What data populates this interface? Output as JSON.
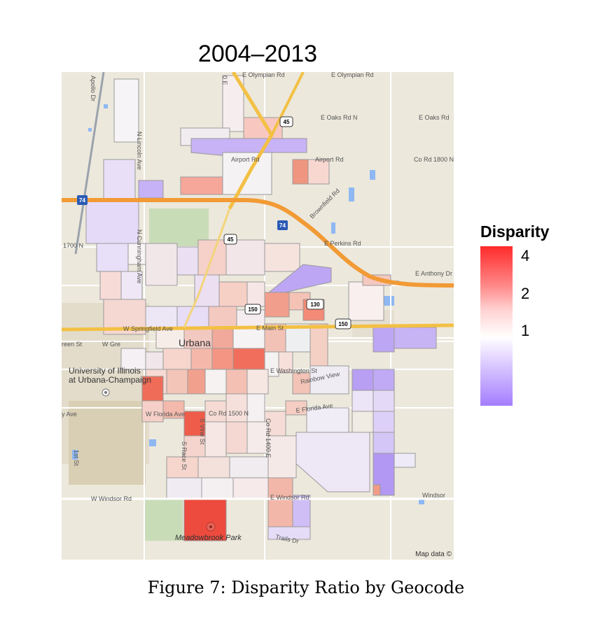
{
  "title": "2004–2013",
  "caption": "Figure 7: Disparity Ratio by Geocode",
  "map": {
    "attribution": "Map data ©",
    "city_label": "Urbana",
    "university_label_line1": "University of Illinois",
    "university_label_line2": "at Urbana-Champaign",
    "park_label": "Meadowbrook Park",
    "road_labels": {
      "e_olympian_rd_1": "E Olympian Rd",
      "e_olympian_rd_2": "E Olympian Rd",
      "e_oaks_rd_n": "E Oaks Rd N",
      "e_oaks_rd": "E Oaks Rd",
      "co_rd_1800": "Co Rd 1800 N",
      "airport_rd_1": "Airport Rd",
      "airport_rd_2": "Airport Rd",
      "brownfield_rd": "Brownfield Rd",
      "e_perkins_rd": "E Perkins Rd",
      "e_anthony_dr": "E Anthony Dr",
      "rd_1700n": "1700 N",
      "apollo_dr": "Apollo Dr",
      "n_lincoln_ave": "N Lincoln Ave",
      "n_cunningham": "N Cunningham Ave",
      "springfield_ave": "W Springfield Ave",
      "e_main_st": "E Main St",
      "green_st": "reen St",
      "w_green": "W Gre",
      "e_washington_st": "E Washington St",
      "rainbow_view": "Rainbow View",
      "w_florida_ave": "W Florida Ave",
      "e_florida_ave": "E Florida Ave",
      "co_rd_1500n": "Co Rd 1500 N",
      "ave_left": "y Ave",
      "s_vine_st": "S Vine St",
      "s_race_st": "S Race St",
      "co_rd_1400e": "Co Rd 1400 E",
      "first_st": "1st St",
      "w_windsor_rd": "W Windsor Rd",
      "e_windsor_rd": "E Windsor Rd",
      "windsor": "Windsor",
      "trails_dr": "Trails Dr",
      "rd_0e": "0 E"
    },
    "shields": {
      "i74_west": "74",
      "i74_east": "74",
      "us45_north": "45",
      "us45_center": "45",
      "rt130": "130",
      "rt150_a": "150",
      "rt150_b": "150"
    }
  },
  "legend": {
    "title": "Disparity",
    "ticks": [
      "4",
      "2",
      "1"
    ],
    "scale_min": 0.25,
    "scale_max": 4.8,
    "colors": {
      "high": "#ff2a2a",
      "mid": "#ffffff",
      "low": "#a47dff"
    }
  },
  "chart_data": {
    "type": "heatmap",
    "title": "2004–2013",
    "value_label": "Disparity",
    "colorbar_ticks": [
      4,
      2,
      1
    ],
    "regions": [
      {
        "id": "meadowbrook",
        "value": 4.3
      },
      {
        "id": "urbana-south-red",
        "value": 3.2
      },
      {
        "id": "downtown-red",
        "value": 2.4
      },
      {
        "id": "north-airport",
        "value": 0.45
      },
      {
        "id": "east-purple",
        "value": 0.4
      }
    ]
  }
}
